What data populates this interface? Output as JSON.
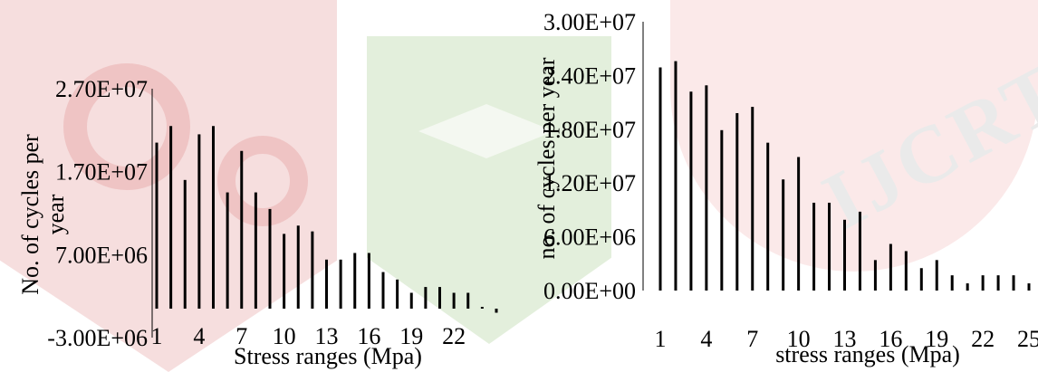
{
  "watermark": {
    "text": "IJCRT"
  },
  "chart_data": [
    {
      "type": "bar",
      "xlabel": "Stress ranges (Mpa)",
      "ylabel": "No. of cycles per year",
      "ylim": [
        -3000000,
        27000000
      ],
      "yticks": [
        "2.70E+07",
        "1.70E+07",
        "7.00E+06",
        "-3.00E+06"
      ],
      "ytick_values": [
        27000000,
        17000000,
        7000000,
        -3000000
      ],
      "xticks": [
        "1",
        "4",
        "7",
        "10",
        "13",
        "16",
        "19",
        "22"
      ],
      "xtick_categories": [
        1,
        4,
        7,
        10,
        13,
        16,
        19,
        22
      ],
      "categories": [
        1,
        2,
        3,
        4,
        5,
        6,
        7,
        8,
        9,
        10,
        11,
        12,
        13,
        14,
        15,
        16,
        17,
        18,
        19,
        20,
        21,
        22,
        23,
        24,
        25
      ],
      "values": [
        20500000,
        22500000,
        16000000,
        21500000,
        22500000,
        14500000,
        19500000,
        14500000,
        12500000,
        9500000,
        10500000,
        9800000,
        6400000,
        6400000,
        7200000,
        7200000,
        4900000,
        4000000,
        2400000,
        3100000,
        3100000,
        2400000,
        2400000,
        700000,
        0
      ],
      "grid": false,
      "legend": "none"
    },
    {
      "type": "bar",
      "xlabel": "stress ranges (Mpa)",
      "ylabel": "no. of cycles per year",
      "ylim": [
        0,
        30000000
      ],
      "yticks": [
        "3.00E+07",
        "2.40E+07",
        "1.80E+07",
        "1.20E+07",
        "6.00E+06",
        "0.00E+00"
      ],
      "ytick_values": [
        30000000,
        24000000,
        18000000,
        12000000,
        6000000,
        0
      ],
      "xticks": [
        "1",
        "4",
        "7",
        "10",
        "13",
        "16",
        "19",
        "22",
        "25"
      ],
      "xtick_categories": [
        1,
        4,
        7,
        10,
        13,
        16,
        19,
        22,
        25
      ],
      "categories": [
        1,
        2,
        3,
        4,
        5,
        6,
        7,
        8,
        9,
        10,
        11,
        12,
        13,
        14,
        15,
        16,
        17,
        18,
        19,
        20,
        21,
        22,
        23,
        24,
        25
      ],
      "values": [
        24900000,
        25600000,
        22200000,
        22900000,
        17900000,
        19800000,
        20500000,
        16500000,
        12400000,
        14900000,
        9800000,
        9800000,
        7900000,
        8800000,
        3400000,
        5200000,
        4400000,
        2500000,
        3400000,
        1700000,
        800000,
        1700000,
        1700000,
        1700000,
        800000
      ],
      "grid": false,
      "legend": "none"
    }
  ]
}
